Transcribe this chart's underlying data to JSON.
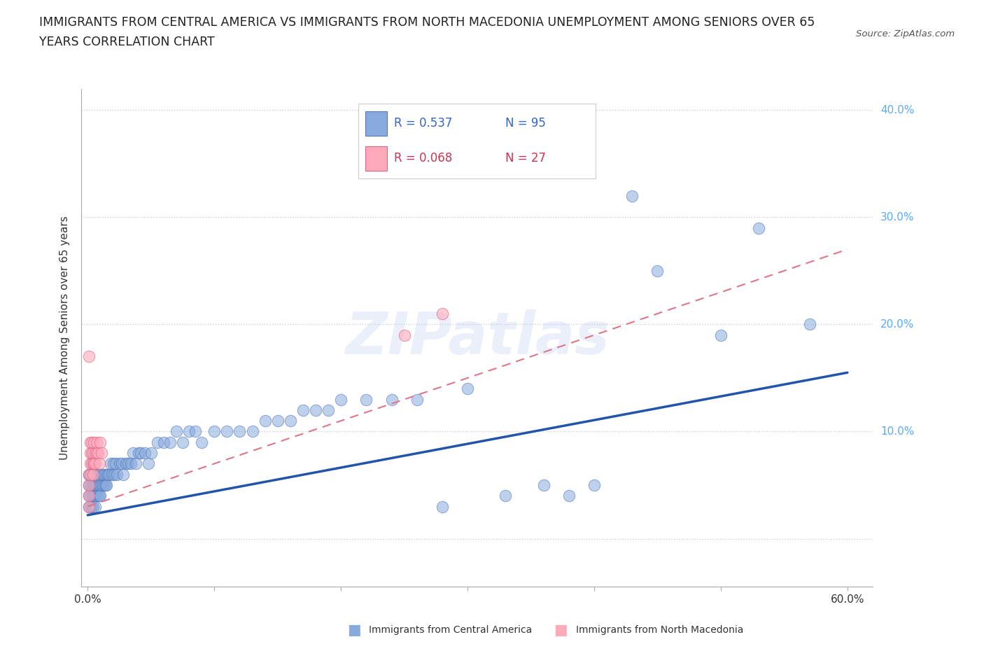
{
  "title_line1": "IMMIGRANTS FROM CENTRAL AMERICA VS IMMIGRANTS FROM NORTH MACEDONIA UNEMPLOYMENT AMONG SENIORS OVER 65",
  "title_line2": "YEARS CORRELATION CHART",
  "source": "Source: ZipAtlas.com",
  "ylabel": "Unemployment Among Seniors over 65 years",
  "xlim": [
    -0.005,
    0.62
  ],
  "ylim": [
    -0.045,
    0.42
  ],
  "background_color": "#ffffff",
  "blue_scatter_color": "#88aadd",
  "blue_scatter_edge": "#5577bb",
  "pink_scatter_color": "#ffaabb",
  "pink_scatter_edge": "#dd6688",
  "blue_line_color": "#2255aa",
  "pink_line_color": "#dd7788",
  "grid_color": "#cccccc",
  "right_label_color": "#55aaff",
  "legend_R1": "R = 0.537",
  "legend_N1": "N = 95",
  "legend_R2": "R = 0.068",
  "legend_N2": "N = 27",
  "legend_color1": "#3366cc",
  "legend_color2": "#cc3355",
  "legend_label1": "Immigrants from Central America",
  "legend_label2": "Immigrants from North Macedonia",
  "watermark": "ZIPatlas",
  "blue_trend_x0": 0.0,
  "blue_trend_y0": 0.022,
  "blue_trend_x1": 0.6,
  "blue_trend_y1": 0.155,
  "pink_trend_x0": 0.0,
  "pink_trend_y0": 0.03,
  "pink_trend_x1": 0.6,
  "pink_trend_y1": 0.27,
  "blue_x": [
    0.001,
    0.001,
    0.001,
    0.001,
    0.002,
    0.002,
    0.002,
    0.002,
    0.003,
    0.003,
    0.003,
    0.003,
    0.004,
    0.004,
    0.004,
    0.004,
    0.005,
    0.005,
    0.005,
    0.006,
    0.006,
    0.006,
    0.007,
    0.007,
    0.007,
    0.008,
    0.008,
    0.008,
    0.009,
    0.009,
    0.01,
    0.01,
    0.01,
    0.011,
    0.012,
    0.012,
    0.013,
    0.013,
    0.014,
    0.015,
    0.015,
    0.016,
    0.017,
    0.018,
    0.019,
    0.02,
    0.021,
    0.022,
    0.023,
    0.025,
    0.027,
    0.028,
    0.03,
    0.032,
    0.034,
    0.036,
    0.038,
    0.04,
    0.042,
    0.045,
    0.048,
    0.05,
    0.055,
    0.06,
    0.065,
    0.07,
    0.075,
    0.08,
    0.085,
    0.09,
    0.1,
    0.11,
    0.12,
    0.13,
    0.14,
    0.15,
    0.16,
    0.17,
    0.18,
    0.19,
    0.2,
    0.22,
    0.24,
    0.26,
    0.28,
    0.3,
    0.33,
    0.36,
    0.38,
    0.4,
    0.43,
    0.45,
    0.5,
    0.53,
    0.57
  ],
  "blue_y": [
    0.04,
    0.05,
    0.06,
    0.03,
    0.04,
    0.05,
    0.06,
    0.03,
    0.04,
    0.05,
    0.06,
    0.03,
    0.04,
    0.05,
    0.06,
    0.03,
    0.04,
    0.05,
    0.06,
    0.05,
    0.04,
    0.03,
    0.05,
    0.04,
    0.06,
    0.05,
    0.04,
    0.06,
    0.05,
    0.04,
    0.05,
    0.04,
    0.06,
    0.05,
    0.05,
    0.06,
    0.05,
    0.06,
    0.05,
    0.06,
    0.05,
    0.06,
    0.06,
    0.07,
    0.06,
    0.07,
    0.06,
    0.07,
    0.06,
    0.07,
    0.07,
    0.06,
    0.07,
    0.07,
    0.07,
    0.08,
    0.07,
    0.08,
    0.08,
    0.08,
    0.07,
    0.08,
    0.09,
    0.09,
    0.09,
    0.1,
    0.09,
    0.1,
    0.1,
    0.09,
    0.1,
    0.1,
    0.1,
    0.1,
    0.11,
    0.11,
    0.11,
    0.12,
    0.12,
    0.12,
    0.13,
    0.13,
    0.13,
    0.13,
    0.03,
    0.14,
    0.04,
    0.05,
    0.04,
    0.05,
    0.32,
    0.25,
    0.19,
    0.29,
    0.2
  ],
  "pink_x": [
    0.001,
    0.001,
    0.001,
    0.001,
    0.001,
    0.002,
    0.002,
    0.002,
    0.002,
    0.003,
    0.003,
    0.003,
    0.004,
    0.004,
    0.004,
    0.005,
    0.005,
    0.006,
    0.006,
    0.007,
    0.007,
    0.008,
    0.009,
    0.01,
    0.011,
    0.25,
    0.28
  ],
  "pink_y": [
    0.17,
    0.04,
    0.05,
    0.06,
    0.03,
    0.07,
    0.08,
    0.09,
    0.06,
    0.07,
    0.08,
    0.09,
    0.07,
    0.08,
    0.06,
    0.09,
    0.07,
    0.08,
    0.07,
    0.08,
    0.09,
    0.08,
    0.07,
    0.09,
    0.08,
    0.19,
    0.21
  ]
}
